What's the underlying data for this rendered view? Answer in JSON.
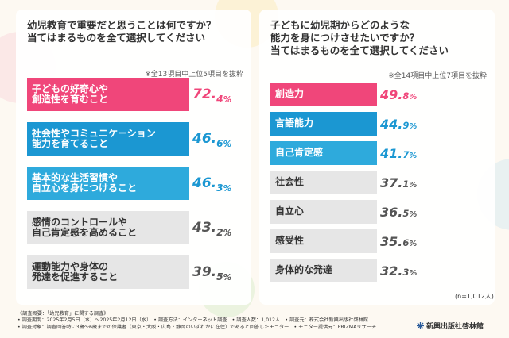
{
  "colors": {
    "pink": "#f0467a",
    "blue": "#1b97d2",
    "lightblue": "#2eaadc",
    "gray": "#e6e6e6",
    "value_pink": "#f0467a",
    "value_blue": "#1b97d2",
    "value_gray": "#555555"
  },
  "chart_data": [
    {
      "type": "bar",
      "title": "幼児教育で重要だと思うことは何ですか？\n当てはまるものを全て選択してください",
      "note": "※全13項目中上位5項目を抜粋",
      "categories": [
        "子どもの好奇心や\n創造性を育むこと",
        "社会性やコミュニケーション\n能力を育てること",
        "基本的な生活習慣や\n自立心を身につけること",
        "感情のコントロールや\n自己肯定感を高めること",
        "運動能力や身体の\n発達を促進すること"
      ],
      "values": [
        72.4,
        46.6,
        46.3,
        43.2,
        39.5
      ],
      "value_labels": [
        {
          "int": "72.",
          "dec": "4",
          "pct": "%"
        },
        {
          "int": "46.",
          "dec": "6",
          "pct": "%"
        },
        {
          "int": "46.",
          "dec": "3",
          "pct": "%"
        },
        {
          "int": "43.",
          "dec": "2",
          "pct": "%"
        },
        {
          "int": "39.",
          "dec": "5",
          "pct": "%"
        }
      ],
      "bar_colors": [
        "pink",
        "blue",
        "lightblue",
        "gray",
        "gray"
      ]
    },
    {
      "type": "bar",
      "title": "子どもに幼児期からどのような\n能力を身につけさせたいですか？\n当てはまるものを全て選択してください",
      "note": "※全14項目中上位7項目を抜粋",
      "categories": [
        "創造力",
        "言語能力",
        "自己肯定感",
        "社会性",
        "自立心",
        "感受性",
        "身体的な発達"
      ],
      "values": [
        49.8,
        44.9,
        41.7,
        37.1,
        36.5,
        35.6,
        32.3
      ],
      "value_labels": [
        {
          "int": "49.",
          "dec": "8",
          "pct": "%"
        },
        {
          "int": "44.",
          "dec": "9",
          "pct": "%"
        },
        {
          "int": "41.",
          "dec": "7",
          "pct": "%"
        },
        {
          "int": "37.",
          "dec": "1",
          "pct": "%"
        },
        {
          "int": "36.",
          "dec": "5",
          "pct": "%"
        },
        {
          "int": "35.",
          "dec": "6",
          "pct": "%"
        },
        {
          "int": "32.",
          "dec": "3",
          "pct": "%"
        }
      ],
      "bar_colors": [
        "pink",
        "blue",
        "lightblue",
        "gray",
        "gray",
        "gray",
        "gray"
      ],
      "sample_note": "(n=1,012人)"
    }
  ],
  "footer": {
    "lines": [
      "《調査概要：「幼児教育」に関する調査》",
      "• 調査期間：2025年2月5日（水）〜2025年2月12日（水）　• 調査方法：インターネット調査　• 調査人数：1,012人　• 調査元：株式会社新興出版社啓林館",
      "• 調査対象：調査回答時に3歳〜6歳までの保護者（東京・大阪・広島・静岡のいずれかに在住）であると回答したモニター　• モニター提供元：PRIZMAリサーチ"
    ],
    "brand": "新興出版社啓林館"
  }
}
